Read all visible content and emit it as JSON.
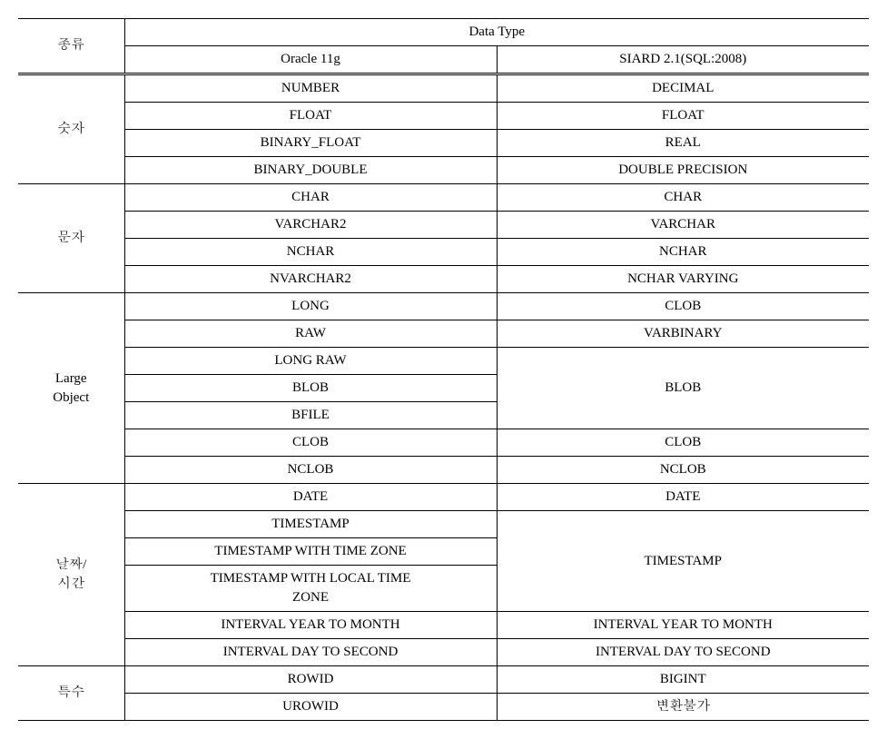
{
  "header": {
    "category": "종류",
    "datatype": "Data Type",
    "oracle": "Oracle 11g",
    "siard": "SIARD 2.1(SQL:2008)"
  },
  "groups": [
    {
      "label": "숫자",
      "rows": [
        {
          "oracle": "NUMBER",
          "siard": "DECIMAL"
        },
        {
          "oracle": "FLOAT",
          "siard": "FLOAT"
        },
        {
          "oracle": "BINARY_FLOAT",
          "siard": "REAL"
        },
        {
          "oracle": "BINARY_DOUBLE",
          "siard": "DOUBLE PRECISION"
        }
      ]
    },
    {
      "label": "문자",
      "rows": [
        {
          "oracle": "CHAR",
          "siard": "CHAR"
        },
        {
          "oracle": "VARCHAR2",
          "siard": "VARCHAR"
        },
        {
          "oracle": "NCHAR",
          "siard": "NCHAR"
        },
        {
          "oracle": "NVARCHAR2",
          "siard": "NCHAR VARYING"
        }
      ]
    },
    {
      "label": "Large\nObject",
      "rows": [
        {
          "oracle": "LONG",
          "siard": "CLOB"
        },
        {
          "oracle": "RAW",
          "siard": "VARBINARY"
        },
        {
          "oracle": "LONG RAW",
          "siard": "BLOB",
          "siard_rowspan": 3
        },
        {
          "oracle": "BLOB"
        },
        {
          "oracle": "BFILE"
        },
        {
          "oracle": "CLOB",
          "siard": "CLOB"
        },
        {
          "oracle": "NCLOB",
          "siard": "NCLOB"
        }
      ]
    },
    {
      "label": "날짜/\n시간",
      "rows": [
        {
          "oracle": "DATE",
          "siard": "DATE"
        },
        {
          "oracle": "TIMESTAMP",
          "siard": "TIMESTAMP",
          "siard_rowspan": 3
        },
        {
          "oracle": "TIMESTAMP WITH TIME ZONE"
        },
        {
          "oracle": "TIMESTAMP WITH LOCAL TIME\nZONE"
        },
        {
          "oracle": "INTERVAL YEAR TO MONTH",
          "siard": "INTERVAL YEAR TO MONTH"
        },
        {
          "oracle": "INTERVAL DAY TO SECOND",
          "siard": "INTERVAL DAY TO SECOND"
        }
      ]
    },
    {
      "label": "특수",
      "rows": [
        {
          "oracle": "ROWID",
          "siard": "BIGINT"
        },
        {
          "oracle": "UROWID",
          "siard": "변환불가"
        }
      ]
    }
  ]
}
